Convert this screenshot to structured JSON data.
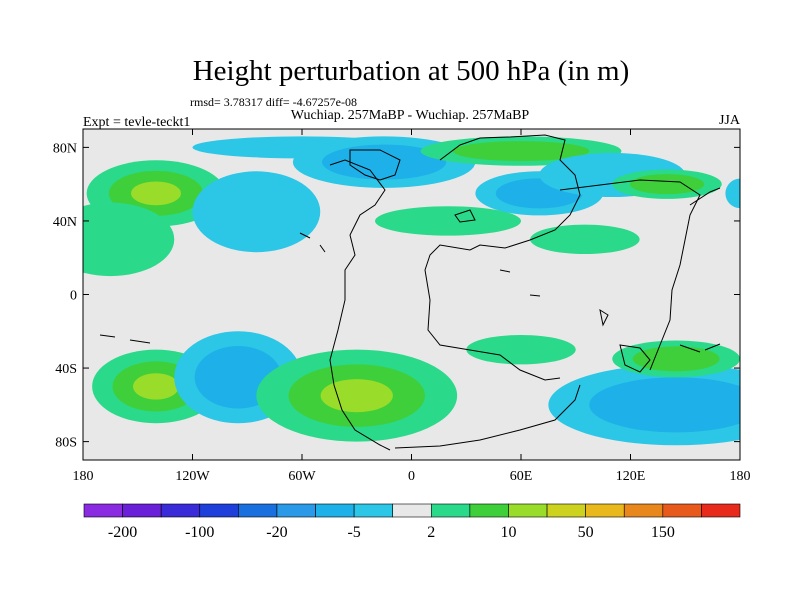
{
  "chart_data": {
    "type": "heatmap",
    "title": "Height perturbation at 500 hPa (in m)",
    "subtitle_stats": "rmsd= 3.78317 diff= -4.67257e-08",
    "left_label": "Expt = tevle-teckt1",
    "center_label": "Wuchiap. 257MaBP - Wuchiap. 257MaBP",
    "right_label": "JJA",
    "x_ticks": [
      "180",
      "120W",
      "60W",
      "0",
      "60E",
      "120E",
      "180"
    ],
    "x_tick_values": [
      -180,
      -120,
      -60,
      0,
      60,
      120,
      180
    ],
    "y_ticks": [
      "80N",
      "40N",
      "0",
      "40S",
      "80S"
    ],
    "y_tick_values": [
      80,
      40,
      0,
      -40,
      -80
    ],
    "xlim": [
      -180,
      180
    ],
    "ylim": [
      -90,
      90
    ],
    "colorbar": {
      "labels": [
        "-200",
        "-100",
        "-20",
        "-5",
        "2",
        "10",
        "50",
        "150"
      ],
      "colors": [
        "#8A2BE2",
        "#6A1FD8",
        "#3A2BD8",
        "#1F3FDA",
        "#1A6FDF",
        "#2A9AE8",
        "#1EB0E8",
        "#2CC6E6",
        "#E8E8E8",
        "#2BD98A",
        "#3FCF3A",
        "#9ADC2A",
        "#CCD21E",
        "#E8B81C",
        "#E8871C",
        "#E85A1C",
        "#E82A1C"
      ]
    },
    "anomalies": [
      {
        "lon": -140,
        "lat": 55,
        "rx": 38,
        "ry": 18,
        "level": 3
      },
      {
        "lon": -165,
        "lat": 30,
        "rx": 35,
        "ry": 20,
        "level": 1
      },
      {
        "lon": -85,
        "lat": 45,
        "rx": 35,
        "ry": 22,
        "level": -1
      },
      {
        "lon": -60,
        "lat": 80,
        "rx": 60,
        "ry": 6,
        "level": -1
      },
      {
        "lon": -15,
        "lat": 72,
        "rx": 50,
        "ry": 14,
        "level": -2
      },
      {
        "lon": 20,
        "lat": 40,
        "rx": 40,
        "ry": 8,
        "level": 1
      },
      {
        "lon": 70,
        "lat": 55,
        "rx": 35,
        "ry": 12,
        "level": -2
      },
      {
        "lon": 60,
        "lat": 78,
        "rx": 55,
        "ry": 8,
        "level": 2
      },
      {
        "lon": 110,
        "lat": 65,
        "rx": 40,
        "ry": 12,
        "level": -1
      },
      {
        "lon": 95,
        "lat": 30,
        "rx": 30,
        "ry": 8,
        "level": 1
      },
      {
        "lon": 140,
        "lat": 60,
        "rx": 30,
        "ry": 8,
        "level": 2
      },
      {
        "lon": 180,
        "lat": 55,
        "rx": 8,
        "ry": 8,
        "level": -1
      },
      {
        "lon": -140,
        "lat": -50,
        "rx": 35,
        "ry": 20,
        "level": 3
      },
      {
        "lon": -95,
        "lat": -45,
        "rx": 35,
        "ry": 25,
        "level": -2
      },
      {
        "lon": -30,
        "lat": -55,
        "rx": 55,
        "ry": 25,
        "level": 3
      },
      {
        "lon": 60,
        "lat": -30,
        "rx": 30,
        "ry": 8,
        "level": 1
      },
      {
        "lon": 145,
        "lat": -60,
        "rx": 70,
        "ry": 22,
        "level": -2
      },
      {
        "lon": 145,
        "lat": -35,
        "rx": 35,
        "ry": 10,
        "level": 2
      }
    ],
    "grid": false,
    "legend_placement": "bottom"
  }
}
